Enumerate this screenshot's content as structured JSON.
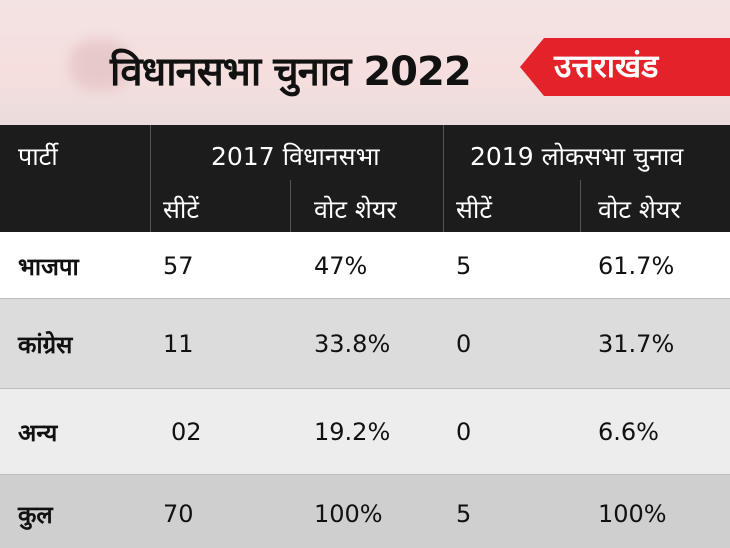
{
  "banner": {
    "title": "विधानसभा चुनाव 2022",
    "state": "उत्तराखंड"
  },
  "table": {
    "party_header": "पार्टी",
    "group_headers": [
      "2017 विधानसभा",
      "2019 लोकसभा चुनाव"
    ],
    "sub_headers": [
      "सीटें",
      "वोट शेयर",
      "सीटें",
      "वोट शेयर"
    ],
    "rows": [
      {
        "party": "भाजपा",
        "seats_2017": "57",
        "vote_2017": "47%",
        "seats_2019": "5",
        "vote_2019": "61.7%"
      },
      {
        "party": "कांग्रेस",
        "seats_2017": "11",
        "vote_2017": "33.8%",
        "seats_2019": "0",
        "vote_2019": "31.7%"
      },
      {
        "party": "अन्य",
        "seats_2017": "02",
        "vote_2017": "19.2%",
        "seats_2019": "0",
        "vote_2019": "6.6%"
      },
      {
        "party": "कुल",
        "seats_2017": "70",
        "vote_2017": "100%",
        "seats_2019": "5",
        "vote_2019": "100%"
      }
    ]
  }
}
